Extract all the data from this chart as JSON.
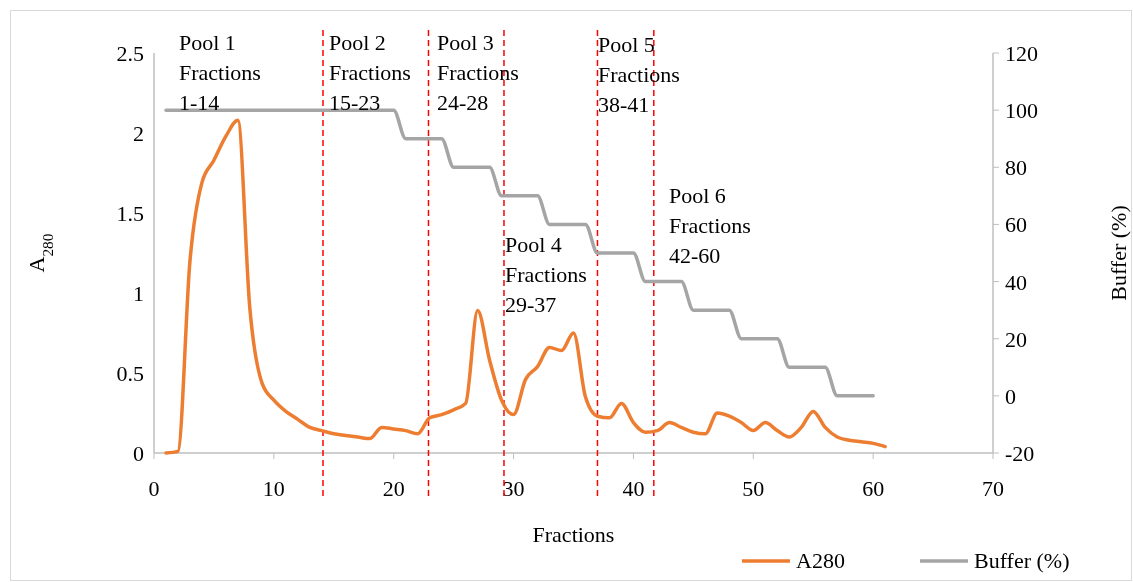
{
  "chart_data": {
    "type": "line",
    "xlabel": "Fractions",
    "ylabel": "A$_{280}$",
    "y2label": "Buffer (%)",
    "xlim": [
      0,
      70
    ],
    "xticks": [
      0,
      10,
      20,
      30,
      40,
      50,
      60,
      70
    ],
    "ylim": [
      0,
      2.5
    ],
    "yticks": [
      0,
      0.5,
      1,
      1.5,
      2,
      2.5
    ],
    "y2lim": [
      -20,
      120
    ],
    "y2ticks": [
      -20,
      0,
      20,
      40,
      60,
      80,
      100,
      120
    ],
    "legend": "bottom right",
    "grid": false,
    "marker": "none",
    "line_style": "solid",
    "x": [
      1,
      2,
      3,
      4,
      5,
      6,
      7,
      8,
      9,
      10,
      11,
      12,
      13,
      14,
      15,
      16,
      17,
      18,
      19,
      20,
      21,
      22,
      23,
      24,
      25,
      26,
      27,
      28,
      29,
      30,
      31,
      32,
      33,
      34,
      35,
      36,
      37,
      38,
      39,
      40,
      41,
      42,
      43,
      44,
      45,
      46,
      47,
      48,
      49,
      50,
      51,
      52,
      53,
      54,
      55,
      56,
      57,
      58,
      59,
      60,
      61
    ],
    "series": [
      {
        "name": "A280",
        "color": "#ed7d31",
        "values": [
          0,
          0.01,
          1.2,
          1.69,
          1.83,
          1.98,
          2.08,
          0.9,
          0.44,
          0.33,
          0.26,
          0.21,
          0.16,
          0.14,
          0.12,
          0.11,
          0.1,
          0.09,
          0.16,
          0.15,
          0.14,
          0.12,
          0.22,
          0.24,
          0.27,
          0.31,
          0.89,
          0.58,
          0.33,
          0.24,
          0.46,
          0.54,
          0.66,
          0.64,
          0.75,
          0.35,
          0.23,
          0.22,
          0.31,
          0.19,
          0.13,
          0.14,
          0.19,
          0.16,
          0.13,
          0.12,
          0.25,
          0.23,
          0.19,
          0.14,
          0.19,
          0.14,
          0.1,
          0.16,
          0.26,
          0.16,
          0.1,
          0.08,
          0.07,
          0.06,
          0.04
        ]
      },
      {
        "name": "Buffer (%)",
        "color": "#a5a5a5",
        "axis": "y2",
        "values": [
          100,
          100,
          100,
          100,
          100,
          100,
          100,
          100,
          100,
          100,
          100,
          100,
          100,
          100,
          100,
          100,
          100,
          100,
          100,
          100,
          90,
          90,
          90,
          90,
          80,
          80,
          80,
          80,
          70,
          70,
          70,
          70,
          60,
          60,
          60,
          60,
          50,
          50,
          50,
          50,
          40,
          40,
          40,
          40,
          30,
          30,
          30,
          30,
          20,
          20,
          20,
          20,
          10,
          10,
          10,
          10,
          0,
          0,
          0,
          0,
          null
        ]
      }
    ],
    "ref_lines": [
      {
        "axis": "x",
        "value": 14.1,
        "color": "#ff0000",
        "line_style": "dashed"
      },
      {
        "axis": "x",
        "value": 22.9,
        "color": "#ff0000",
        "line_style": "dashed"
      },
      {
        "axis": "x",
        "value": 29.2,
        "color": "#ff0000",
        "line_style": "dashed"
      },
      {
        "axis": "x",
        "value": 37,
        "color": "#ff0000",
        "line_style": "dashed"
      },
      {
        "axis": "x",
        "value": 41.7,
        "color": "#ff0000",
        "line_style": "dashed"
      }
    ],
    "annotations": [
      "Pool 1\nFractions\n1-14",
      "Pool 2\nFractions\n15-23",
      "Pool 3\nFractions\n24-28",
      "Pool 4\nFractions\n29-37",
      "Pool 5\nFractions\n38-41",
      "Pool 6\nFractions\n42-60"
    ]
  }
}
